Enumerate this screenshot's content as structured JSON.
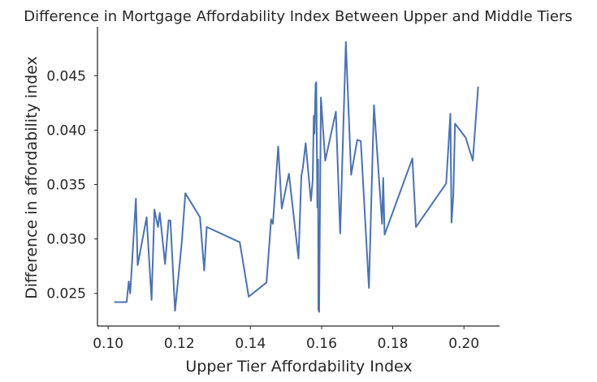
{
  "chart_data": {
    "type": "line",
    "title": "Difference in Mortgage Affordability Index Between Upper and Middle Tiers",
    "xlabel": "Upper Tier Affordability Index",
    "ylabel": "Difference in affordability index",
    "xlim": [
      0.097,
      0.21
    ],
    "ylim": [
      0.022,
      0.0495
    ],
    "xticks": [
      0.1,
      0.12,
      0.14,
      0.16,
      0.18,
      0.2
    ],
    "xtick_labels": [
      "0.10",
      "0.12",
      "0.14",
      "0.16",
      "0.18",
      "0.20"
    ],
    "yticks": [
      0.025,
      0.03,
      0.035,
      0.04,
      0.045
    ],
    "ytick_labels": [
      "0.025",
      "0.030",
      "0.035",
      "0.040",
      "0.045"
    ],
    "grid": false,
    "line_color": "#4c72b0",
    "series": [
      {
        "x": [
          0.1017,
          0.1052,
          0.1058,
          0.1062,
          0.1078,
          0.1083,
          0.1108,
          0.1122,
          0.113,
          0.114,
          0.1145,
          0.116,
          0.117,
          0.1175,
          0.1188,
          0.1207,
          0.1217,
          0.1258,
          0.127,
          0.1277,
          0.137,
          0.1395,
          0.1445,
          0.1458,
          0.1463,
          0.1478,
          0.1488,
          0.1508,
          0.1535,
          0.1543,
          0.1547,
          0.1555,
          0.157,
          0.1575,
          0.1578,
          0.158,
          0.1583,
          0.1585,
          0.1588,
          0.159,
          0.1591,
          0.1593,
          0.1598,
          0.161,
          0.164,
          0.1652,
          0.1668,
          0.1683,
          0.17,
          0.171,
          0.1733,
          0.1747,
          0.177,
          0.1773,
          0.1777,
          0.1855,
          0.1865,
          0.195,
          0.1962,
          0.1965,
          0.197,
          0.1975,
          0.2005,
          0.2025,
          0.204
        ],
        "y": [
          0.0242,
          0.0242,
          0.0261,
          0.025,
          0.0337,
          0.0276,
          0.032,
          0.0244,
          0.0327,
          0.0311,
          0.0324,
          0.0277,
          0.0317,
          0.0317,
          0.0234,
          0.0297,
          0.0342,
          0.032,
          0.0271,
          0.0311,
          0.0297,
          0.0247,
          0.026,
          0.0318,
          0.0314,
          0.0385,
          0.0328,
          0.036,
          0.0282,
          0.0358,
          0.0365,
          0.0388,
          0.0335,
          0.0354,
          0.0413,
          0.0397,
          0.0442,
          0.0444,
          0.0329,
          0.0373,
          0.0235,
          0.0233,
          0.043,
          0.0372,
          0.0417,
          0.0305,
          0.0481,
          0.0359,
          0.0391,
          0.039,
          0.0255,
          0.0423,
          0.0314,
          0.0356,
          0.0304,
          0.0374,
          0.0311,
          0.0351,
          0.0415,
          0.0315,
          0.034,
          0.0406,
          0.0393,
          0.0372,
          0.044
        ]
      }
    ]
  }
}
